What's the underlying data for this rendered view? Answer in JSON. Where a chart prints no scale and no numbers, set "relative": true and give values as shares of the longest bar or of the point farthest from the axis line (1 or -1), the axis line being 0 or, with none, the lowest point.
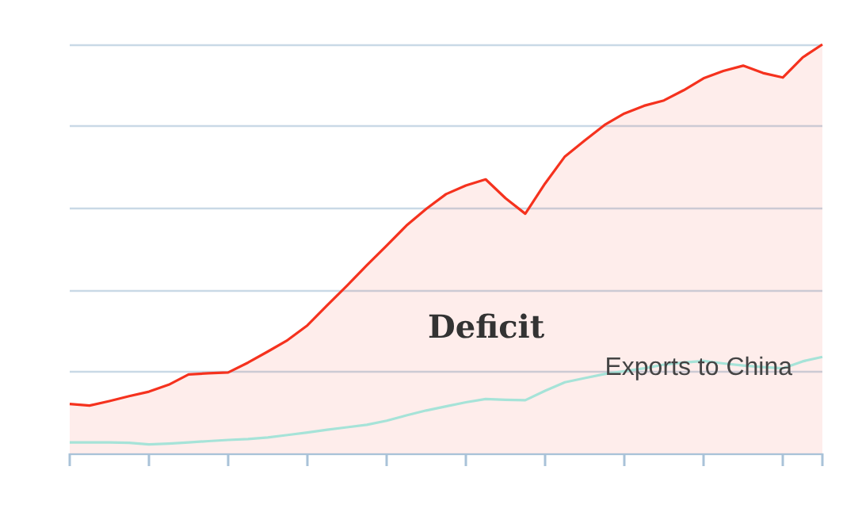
{
  "chart_data": {
    "type": "line",
    "relative": true,
    "grid": "y",
    "marker": "none",
    "categories": [
      null,
      null,
      null,
      null,
      null,
      null,
      null,
      null,
      null,
      null,
      null,
      null,
      null,
      null,
      null,
      null,
      null,
      null,
      null,
      null,
      null,
      null,
      null,
      null,
      null,
      null,
      null,
      null,
      null,
      null,
      null,
      null,
      null,
      null,
      null,
      null,
      null,
      null,
      null
    ],
    "series": [
      {
        "type": "area",
        "color": "#f5321e",
        "values": [
          0.121,
          0.117,
          0.128,
          0.14,
          0.151,
          0.168,
          0.193,
          0.196,
          0.198,
          0.222,
          0.249,
          0.277,
          0.313,
          0.362,
          0.41,
          0.46,
          0.508,
          0.557,
          0.598,
          0.634,
          0.655,
          0.67,
          0.624,
          0.586,
          0.66,
          0.726,
          0.765,
          0.803,
          0.831,
          0.85,
          0.863,
          0.888,
          0.917,
          0.935,
          0.948,
          0.93,
          0.919,
          0.968,
          1
        ]
      },
      {
        "name": "Exports to China",
        "type": "line",
        "color": "#a6e3d8",
        "values": [
          0.027,
          0.027,
          0.027,
          0.026,
          0.022,
          0.024,
          0.027,
          0.03,
          0.033,
          0.035,
          0.039,
          0.045,
          0.051,
          0.058,
          0.064,
          0.07,
          0.08,
          0.093,
          0.105,
          0.115,
          0.125,
          0.133,
          0.131,
          0.13,
          0.153,
          0.174,
          0.184,
          0.194,
          0.201,
          0.208,
          0.217,
          0.222,
          0.226,
          0.22,
          0.215,
          0.211,
          0.208,
          0.225,
          0.236
        ]
      }
    ],
    "annotations": [
      "Deficit"
    ]
  }
}
